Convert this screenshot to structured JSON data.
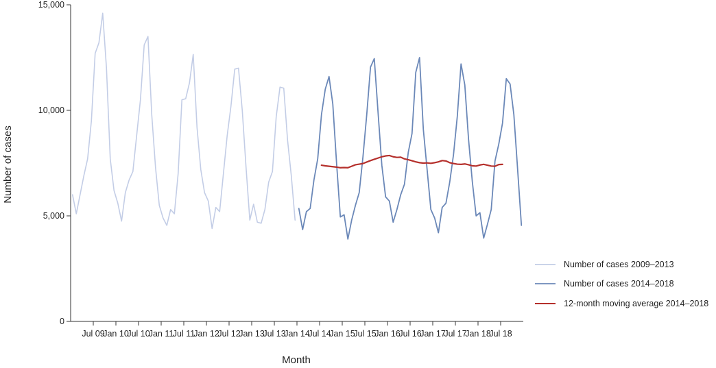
{
  "chart_data": {
    "type": "line",
    "title": "",
    "xlabel": "Month",
    "ylabel": "Number of cases",
    "ylim": [
      0,
      15000
    ],
    "yticks": [
      0,
      5000,
      10000,
      15000
    ],
    "ytick_labels": [
      "0",
      "5,000",
      "10,000",
      "15,000"
    ],
    "x_start": "2009-01",
    "xtick_labels": [
      "Jul 09",
      "Jan 10",
      "Jul 10",
      "Jan 11",
      "Jul 11",
      "Jan 12",
      "Jul 12",
      "Jan 13",
      "Jul 13",
      "Jan 14",
      "Jul 14",
      "Jan 15",
      "Jul 15",
      "Jan 16",
      "Jul 16",
      "Jan 17",
      "Jul 17",
      "Jan 18",
      "Jul 18"
    ],
    "grid": false,
    "legend_position": "right",
    "colors": {
      "series_2009_2013": "#c3cde6",
      "series_2014_2018": "#6b88b8",
      "moving_average": "#b5302c"
    },
    "series": [
      {
        "name": "Number of cases 2009–2013",
        "x": [
          "2009-01",
          "2009-02",
          "2009-03",
          "2009-04",
          "2009-05",
          "2009-06",
          "2009-07",
          "2009-08",
          "2009-09",
          "2009-10",
          "2009-11",
          "2009-12",
          "2010-01",
          "2010-02",
          "2010-03",
          "2010-04",
          "2010-05",
          "2010-06",
          "2010-07",
          "2010-08",
          "2010-09",
          "2010-10",
          "2010-11",
          "2010-12",
          "2011-01",
          "2011-02",
          "2011-03",
          "2011-04",
          "2011-05",
          "2011-06",
          "2011-07",
          "2011-08",
          "2011-09",
          "2011-10",
          "2011-11",
          "2011-12",
          "2012-01",
          "2012-02",
          "2012-03",
          "2012-04",
          "2012-05",
          "2012-06",
          "2012-07",
          "2012-08",
          "2012-09",
          "2012-10",
          "2012-11",
          "2012-12",
          "2013-01",
          "2013-02",
          "2013-03",
          "2013-04",
          "2013-05",
          "2013-06",
          "2013-07",
          "2013-08",
          "2013-09",
          "2013-10",
          "2013-11",
          "2013-12"
        ],
        "values": [
          6000,
          5100,
          6000,
          6900,
          7700,
          9500,
          12700,
          13200,
          14600,
          12000,
          7700,
          6200,
          5600,
          4750,
          6100,
          6700,
          7100,
          8800,
          10500,
          13100,
          13500,
          9800,
          7300,
          5500,
          4900,
          4550,
          5300,
          5100,
          7000,
          10500,
          10550,
          11300,
          12650,
          9200,
          7200,
          6100,
          5700,
          4400,
          5400,
          5200,
          7000,
          8800,
          10200,
          11950,
          12000,
          10000,
          7300,
          4800,
          5550,
          4700,
          4650,
          5300,
          6600,
          7100,
          9700,
          11100,
          11050,
          8600,
          6900,
          4800
        ]
      },
      {
        "name": "Number of cases 2014–2018",
        "x": [
          "2014-01",
          "2014-02",
          "2014-03",
          "2014-04",
          "2014-05",
          "2014-06",
          "2014-07",
          "2014-08",
          "2014-09",
          "2014-10",
          "2014-11",
          "2014-12",
          "2015-01",
          "2015-02",
          "2015-03",
          "2015-04",
          "2015-05",
          "2015-06",
          "2015-07",
          "2015-08",
          "2015-09",
          "2015-10",
          "2015-11",
          "2015-12",
          "2016-01",
          "2016-02",
          "2016-03",
          "2016-04",
          "2016-05",
          "2016-06",
          "2016-07",
          "2016-08",
          "2016-09",
          "2016-10",
          "2016-11",
          "2016-12",
          "2017-01",
          "2017-02",
          "2017-03",
          "2017-04",
          "2017-05",
          "2017-06",
          "2017-07",
          "2017-08",
          "2017-09",
          "2017-10",
          "2017-11",
          "2017-12",
          "2018-01",
          "2018-02",
          "2018-03",
          "2018-04",
          "2018-05",
          "2018-06",
          "2018-07",
          "2018-08",
          "2018-09",
          "2018-10",
          "2018-11",
          "2018-12"
        ],
        "values": [
          5350,
          4350,
          5200,
          5350,
          6700,
          7700,
          9800,
          11000,
          11600,
          10300,
          7500,
          4950,
          5050,
          3900,
          4800,
          5500,
          6100,
          7800,
          9800,
          12050,
          12450,
          9900,
          7400,
          5900,
          5700,
          4700,
          5300,
          6000,
          6500,
          8000,
          8900,
          11800,
          12500,
          9100,
          7200,
          5300,
          4900,
          4200,
          5400,
          5600,
          6600,
          7900,
          9700,
          12200,
          11200,
          8600,
          6600,
          5000,
          5150,
          3950,
          4600,
          5300,
          7600,
          8400,
          9400,
          11500,
          11250,
          9800,
          7200,
          4550
        ]
      },
      {
        "name": "12-month moving average 2014–2018",
        "x": [
          "2014-07",
          "2014-08",
          "2014-09",
          "2014-10",
          "2014-11",
          "2014-12",
          "2015-01",
          "2015-02",
          "2015-03",
          "2015-04",
          "2015-05",
          "2015-06",
          "2015-07",
          "2015-08",
          "2015-09",
          "2015-10",
          "2015-11",
          "2015-12",
          "2016-01",
          "2016-02",
          "2016-03",
          "2016-04",
          "2016-05",
          "2016-06",
          "2016-07",
          "2016-08",
          "2016-09",
          "2016-10",
          "2016-11",
          "2016-12",
          "2017-01",
          "2017-02",
          "2017-03",
          "2017-04",
          "2017-05",
          "2017-06",
          "2017-07",
          "2017-08",
          "2017-09",
          "2017-10",
          "2017-11",
          "2017-12",
          "2018-01",
          "2018-02",
          "2018-03",
          "2018-04",
          "2018-05",
          "2018-06",
          "2018-07"
        ],
        "values": [
          7400,
          7370,
          7350,
          7330,
          7310,
          7280,
          7290,
          7280,
          7350,
          7420,
          7450,
          7480,
          7550,
          7620,
          7680,
          7740,
          7800,
          7840,
          7860,
          7800,
          7770,
          7780,
          7700,
          7660,
          7610,
          7560,
          7520,
          7500,
          7510,
          7490,
          7520,
          7560,
          7620,
          7600,
          7520,
          7480,
          7450,
          7440,
          7460,
          7420,
          7370,
          7360,
          7410,
          7440,
          7400,
          7360,
          7350,
          7430,
          7440
        ]
      }
    ]
  }
}
